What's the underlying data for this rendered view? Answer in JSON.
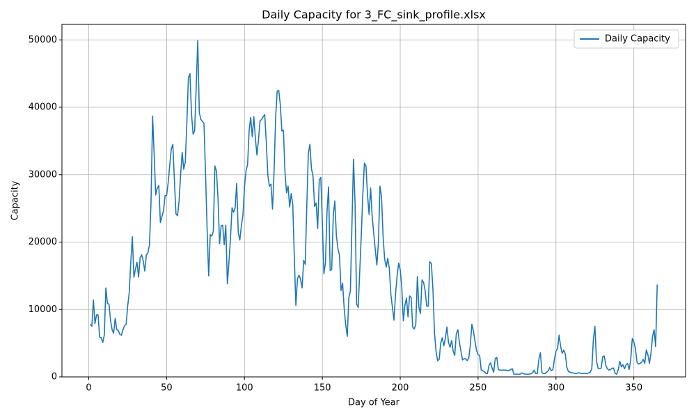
{
  "chart_data": {
    "type": "line",
    "title": "Daily Capacity for 3_FC_sink_profile.xlsx",
    "x_label": "Day of Year",
    "y_label": "Capacity",
    "xlim": [
      -17.2,
      383.2
    ],
    "ylim": [
      0,
      52300
    ],
    "xticks": [
      0,
      50,
      100,
      150,
      200,
      250,
      300,
      350
    ],
    "yticks": [
      0,
      10000,
      20000,
      30000,
      40000,
      50000
    ],
    "grid": true,
    "legend_position": "upper-right",
    "x": [
      1,
      2,
      3,
      4,
      5,
      6,
      7,
      8,
      9,
      10,
      11,
      12,
      13,
      14,
      15,
      16,
      17,
      18,
      19,
      20,
      21,
      22,
      23,
      24,
      25,
      26,
      27,
      28,
      29,
      30,
      31,
      32,
      33,
      34,
      35,
      36,
      37,
      38,
      39,
      40,
      41,
      42,
      43,
      44,
      45,
      46,
      47,
      48,
      49,
      50,
      51,
      52,
      53,
      54,
      55,
      56,
      57,
      58,
      59,
      60,
      61,
      62,
      63,
      64,
      65,
      66,
      67,
      68,
      69,
      70,
      71,
      72,
      73,
      74,
      75,
      76,
      77,
      78,
      79,
      80,
      81,
      82,
      83,
      84,
      85,
      86,
      87,
      88,
      89,
      90,
      91,
      92,
      93,
      94,
      95,
      96,
      97,
      98,
      99,
      100,
      101,
      102,
      103,
      104,
      105,
      106,
      107,
      108,
      109,
      110,
      111,
      112,
      113,
      114,
      115,
      116,
      117,
      118,
      119,
      120,
      121,
      122,
      123,
      124,
      125,
      126,
      127,
      128,
      129,
      130,
      131,
      132,
      133,
      134,
      135,
      136,
      137,
      138,
      139,
      140,
      141,
      142,
      143,
      144,
      145,
      146,
      147,
      148,
      149,
      150,
      151,
      152,
      153,
      154,
      155,
      156,
      157,
      158,
      159,
      160,
      161,
      162,
      163,
      164,
      165,
      166,
      167,
      168,
      169,
      170,
      171,
      172,
      173,
      174,
      175,
      176,
      177,
      178,
      179,
      180,
      181,
      182,
      183,
      184,
      185,
      186,
      187,
      188,
      189,
      190,
      191,
      192,
      193,
      194,
      195,
      196,
      197,
      198,
      199,
      200,
      201,
      202,
      203,
      204,
      205,
      206,
      207,
      208,
      209,
      210,
      211,
      212,
      213,
      214,
      215,
      216,
      217,
      218,
      219,
      220,
      221,
      222,
      223,
      224,
      225,
      226,
      227,
      228,
      229,
      230,
      231,
      232,
      233,
      234,
      235,
      236,
      237,
      238,
      239,
      240,
      241,
      242,
      243,
      244,
      245,
      246,
      247,
      248,
      249,
      250,
      251,
      252,
      253,
      254,
      255,
      256,
      257,
      258,
      259,
      260,
      261,
      262,
      263,
      264,
      265,
      266,
      267,
      268,
      269,
      270,
      271,
      272,
      273,
      274,
      275,
      276,
      277,
      278,
      279,
      280,
      281,
      282,
      283,
      284,
      285,
      286,
      287,
      288,
      289,
      290,
      291,
      292,
      293,
      294,
      295,
      296,
      297,
      298,
      299,
      300,
      301,
      302,
      303,
      304,
      305,
      306,
      307,
      308,
      309,
      310,
      311,
      312,
      313,
      314,
      315,
      316,
      317,
      318,
      319,
      320,
      321,
      322,
      323,
      324,
      325,
      326,
      327,
      328,
      329,
      330,
      331,
      332,
      333,
      334,
      335,
      336,
      337,
      338,
      339,
      340,
      341,
      342,
      343,
      344,
      345,
      346,
      347,
      348,
      349,
      350,
      351,
      352,
      353,
      354,
      355,
      356,
      357,
      358,
      359,
      360,
      361,
      362,
      363,
      364,
      365
    ],
    "series": [
      {
        "name": "Daily Capacity",
        "color": "#1f77b4",
        "values": [
          7800,
          7500,
          11400,
          7900,
          9200,
          9200,
          5900,
          5800,
          5100,
          6200,
          13200,
          10900,
          10800,
          8400,
          7000,
          6500,
          8700,
          7000,
          6900,
          6300,
          6200,
          7000,
          7600,
          7800,
          10500,
          12500,
          17000,
          20800,
          14800,
          16000,
          17000,
          14800,
          17700,
          18100,
          17200,
          15700,
          18100,
          18400,
          19600,
          26000,
          38700,
          33000,
          27000,
          28000,
          28400,
          22900,
          23800,
          24600,
          26900,
          26900,
          28800,
          31400,
          33800,
          34500,
          29200,
          24200,
          23900,
          26100,
          30000,
          33300,
          30800,
          31900,
          37700,
          44400,
          45000,
          39000,
          36000,
          36500,
          43000,
          49900,
          39200,
          38200,
          37900,
          37600,
          30100,
          22000,
          15000,
          21100,
          20900,
          21600,
          31300,
          30500,
          26500,
          19800,
          22400,
          22500,
          19600,
          22500,
          13800,
          17000,
          20500,
          25100,
          24400,
          25100,
          28700,
          21400,
          20300,
          22400,
          24000,
          28200,
          30600,
          31500,
          36600,
          38500,
          35600,
          38600,
          35400,
          32900,
          35200,
          38000,
          38200,
          38600,
          38900,
          34800,
          29900,
          28300,
          28600,
          24900,
          30500,
          38500,
          42400,
          42500,
          40400,
          36500,
          36600,
          30400,
          27300,
          28300,
          25200,
          27200,
          25600,
          17700,
          10600,
          14500,
          15100,
          14500,
          13200,
          17300,
          16700,
          25300,
          33100,
          34500,
          30900,
          29800,
          25300,
          25800,
          22000,
          29200,
          29600,
          22900,
          15300,
          17000,
          24600,
          28200,
          15800,
          15900,
          23900,
          26100,
          21000,
          19000,
          18000,
          12800,
          13900,
          10200,
          7700,
          6000,
          11800,
          12700,
          22700,
          32300,
          25700,
          10800,
          10300,
          15600,
          21100,
          27100,
          31700,
          31300,
          27000,
          24100,
          28000,
          23800,
          21300,
          18800,
          16600,
          20000,
          28300,
          26700,
          20800,
          17500,
          16300,
          17600,
          16100,
          12200,
          10300,
          8400,
          12300,
          15000,
          16900,
          15900,
          13300,
          8300,
          10600,
          11700,
          8900,
          12000,
          11800,
          7400,
          7100,
          7800,
          14900,
          10300,
          9400,
          14400,
          14000,
          12800,
          10500,
          10500,
          17100,
          16800,
          13000,
          6500,
          3800,
          2400,
          2600,
          5000,
          5800,
          4600,
          5800,
          7400,
          5100,
          4400,
          5400,
          3800,
          3200,
          6400,
          7000,
          5100,
          3800,
          2500,
          2700,
          2700,
          2400,
          2800,
          4700,
          7800,
          6800,
          5300,
          3900,
          3300,
          3200,
          1000,
          900,
          800,
          500,
          500,
          1700,
          2100,
          1300,
          700,
          2700,
          2900,
          1100,
          1000,
          1000,
          1000,
          1000,
          1000,
          900,
          1000,
          1100,
          1200,
          400,
          400,
          400,
          400,
          400,
          600,
          500,
          400,
          400,
          400,
          400,
          500,
          600,
          1000,
          500,
          500,
          2600,
          3600,
          600,
          500,
          500,
          700,
          900,
          1400,
          900,
          1100,
          2600,
          3800,
          4200,
          6200,
          4500,
          3500,
          4000,
          3400,
          1400,
          800,
          700,
          600,
          600,
          500,
          500,
          600,
          600,
          500,
          500,
          500,
          500,
          500,
          600,
          700,
          1200,
          5500,
          7500,
          2400,
          1300,
          1200,
          1300,
          3000,
          3100,
          1700,
          1200,
          1000,
          1100,
          1300,
          1300,
          500,
          400,
          1100,
          2300,
          1500,
          1800,
          1200,
          1800,
          2000,
          1100,
          2600,
          5700,
          5200,
          4200,
          2200,
          1900,
          2000,
          2200,
          2600,
          2000,
          4000,
          3300,
          2000,
          3500,
          6000,
          7000,
          4500,
          13700
        ]
      }
    ]
  }
}
